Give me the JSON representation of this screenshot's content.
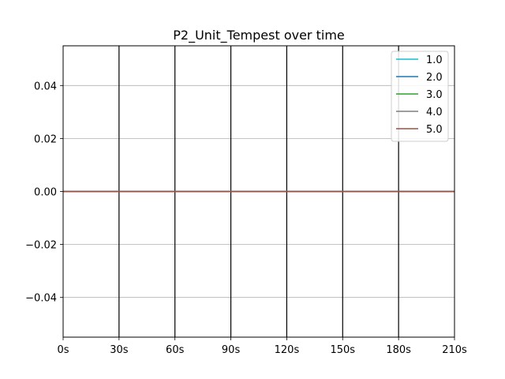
{
  "chart_data": {
    "type": "line",
    "title": "P2_Unit_Tempest over time",
    "xlabel": "",
    "ylabel": "",
    "x": [
      0,
      210
    ],
    "xlim": [
      0,
      210
    ],
    "ylim": [
      -0.055,
      0.055
    ],
    "x_ticks": [
      {
        "value": 0,
        "label": "0s"
      },
      {
        "value": 30,
        "label": "30s"
      },
      {
        "value": 60,
        "label": "60s"
      },
      {
        "value": 90,
        "label": "90s"
      },
      {
        "value": 120,
        "label": "120s"
      },
      {
        "value": 150,
        "label": "150s"
      },
      {
        "value": 180,
        "label": "180s"
      },
      {
        "value": 210,
        "label": "210s"
      }
    ],
    "y_ticks": [
      {
        "value": 0.04,
        "label": "0.04"
      },
      {
        "value": 0.02,
        "label": "0.02"
      },
      {
        "value": 0.0,
        "label": "0.00"
      },
      {
        "value": -0.02,
        "label": "−0.02"
      },
      {
        "value": -0.04,
        "label": "−0.04"
      }
    ],
    "vertical_lines": [
      30,
      60,
      90,
      120,
      150,
      180
    ],
    "grid": "horizontal",
    "legend_position": "top-right",
    "series": [
      {
        "name": "1.0",
        "color": "#17becf",
        "values": [
          0,
          0
        ]
      },
      {
        "name": "2.0",
        "color": "#1f77b4",
        "values": [
          0,
          0
        ]
      },
      {
        "name": "3.0",
        "color": "#2ca02c",
        "values": [
          0,
          0
        ]
      },
      {
        "name": "4.0",
        "color": "#7f7f7f",
        "values": [
          0,
          0
        ]
      },
      {
        "name": "5.0",
        "color": "#8c564b",
        "values": [
          0,
          0
        ]
      }
    ]
  }
}
